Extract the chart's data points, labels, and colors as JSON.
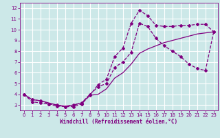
{
  "xlabel": "Windchill (Refroidissement éolien,°C)",
  "background_color": "#cce8e8",
  "grid_color": "#ffffff",
  "line_color": "#800080",
  "xlim": [
    -0.5,
    23.5
  ],
  "ylim": [
    2.5,
    12.5
  ],
  "xticks": [
    0,
    1,
    2,
    3,
    4,
    5,
    6,
    7,
    8,
    9,
    10,
    11,
    12,
    13,
    14,
    15,
    16,
    17,
    18,
    19,
    20,
    21,
    22,
    23
  ],
  "yticks": [
    3,
    4,
    5,
    6,
    7,
    8,
    9,
    10,
    11,
    12
  ],
  "curve1_x": [
    0,
    1,
    2,
    3,
    4,
    5,
    6,
    7,
    8,
    9,
    10,
    11,
    12,
    13,
    14,
    15,
    16,
    17,
    18,
    19,
    20,
    21,
    22,
    23
  ],
  "curve1_y": [
    4.0,
    3.3,
    3.2,
    3.1,
    2.9,
    2.85,
    2.85,
    3.1,
    3.9,
    4.9,
    5.4,
    7.5,
    8.3,
    10.6,
    11.8,
    11.3,
    10.4,
    10.3,
    10.3,
    10.4,
    10.4,
    10.5,
    10.5,
    9.8
  ],
  "curve2_x": [
    0,
    1,
    2,
    3,
    4,
    5,
    6,
    7,
    8,
    9,
    10,
    11,
    12,
    13,
    14,
    15,
    16,
    17,
    18,
    19,
    20,
    21,
    22,
    23
  ],
  "curve2_y": [
    4.0,
    3.5,
    3.4,
    3.1,
    3.0,
    2.85,
    3.0,
    3.2,
    4.0,
    4.7,
    5.0,
    6.5,
    7.0,
    7.9,
    10.6,
    10.3,
    9.2,
    8.5,
    8.0,
    7.5,
    6.8,
    6.4,
    6.2,
    9.8
  ],
  "curve3_x": [
    0,
    1,
    2,
    3,
    4,
    5,
    6,
    7,
    8,
    9,
    10,
    11,
    12,
    13,
    14,
    15,
    16,
    17,
    18,
    19,
    20,
    21,
    22,
    23
  ],
  "curve3_y": [
    4.0,
    3.5,
    3.4,
    3.2,
    3.0,
    2.9,
    3.0,
    3.2,
    3.9,
    4.0,
    4.5,
    5.5,
    6.0,
    6.8,
    7.8,
    8.2,
    8.5,
    8.8,
    9.0,
    9.2,
    9.4,
    9.6,
    9.7,
    9.8
  ],
  "marker": "D",
  "markersize": 2.0,
  "linewidth": 0.9,
  "tick_fontsize": 5.0,
  "label_fontsize": 5.5
}
